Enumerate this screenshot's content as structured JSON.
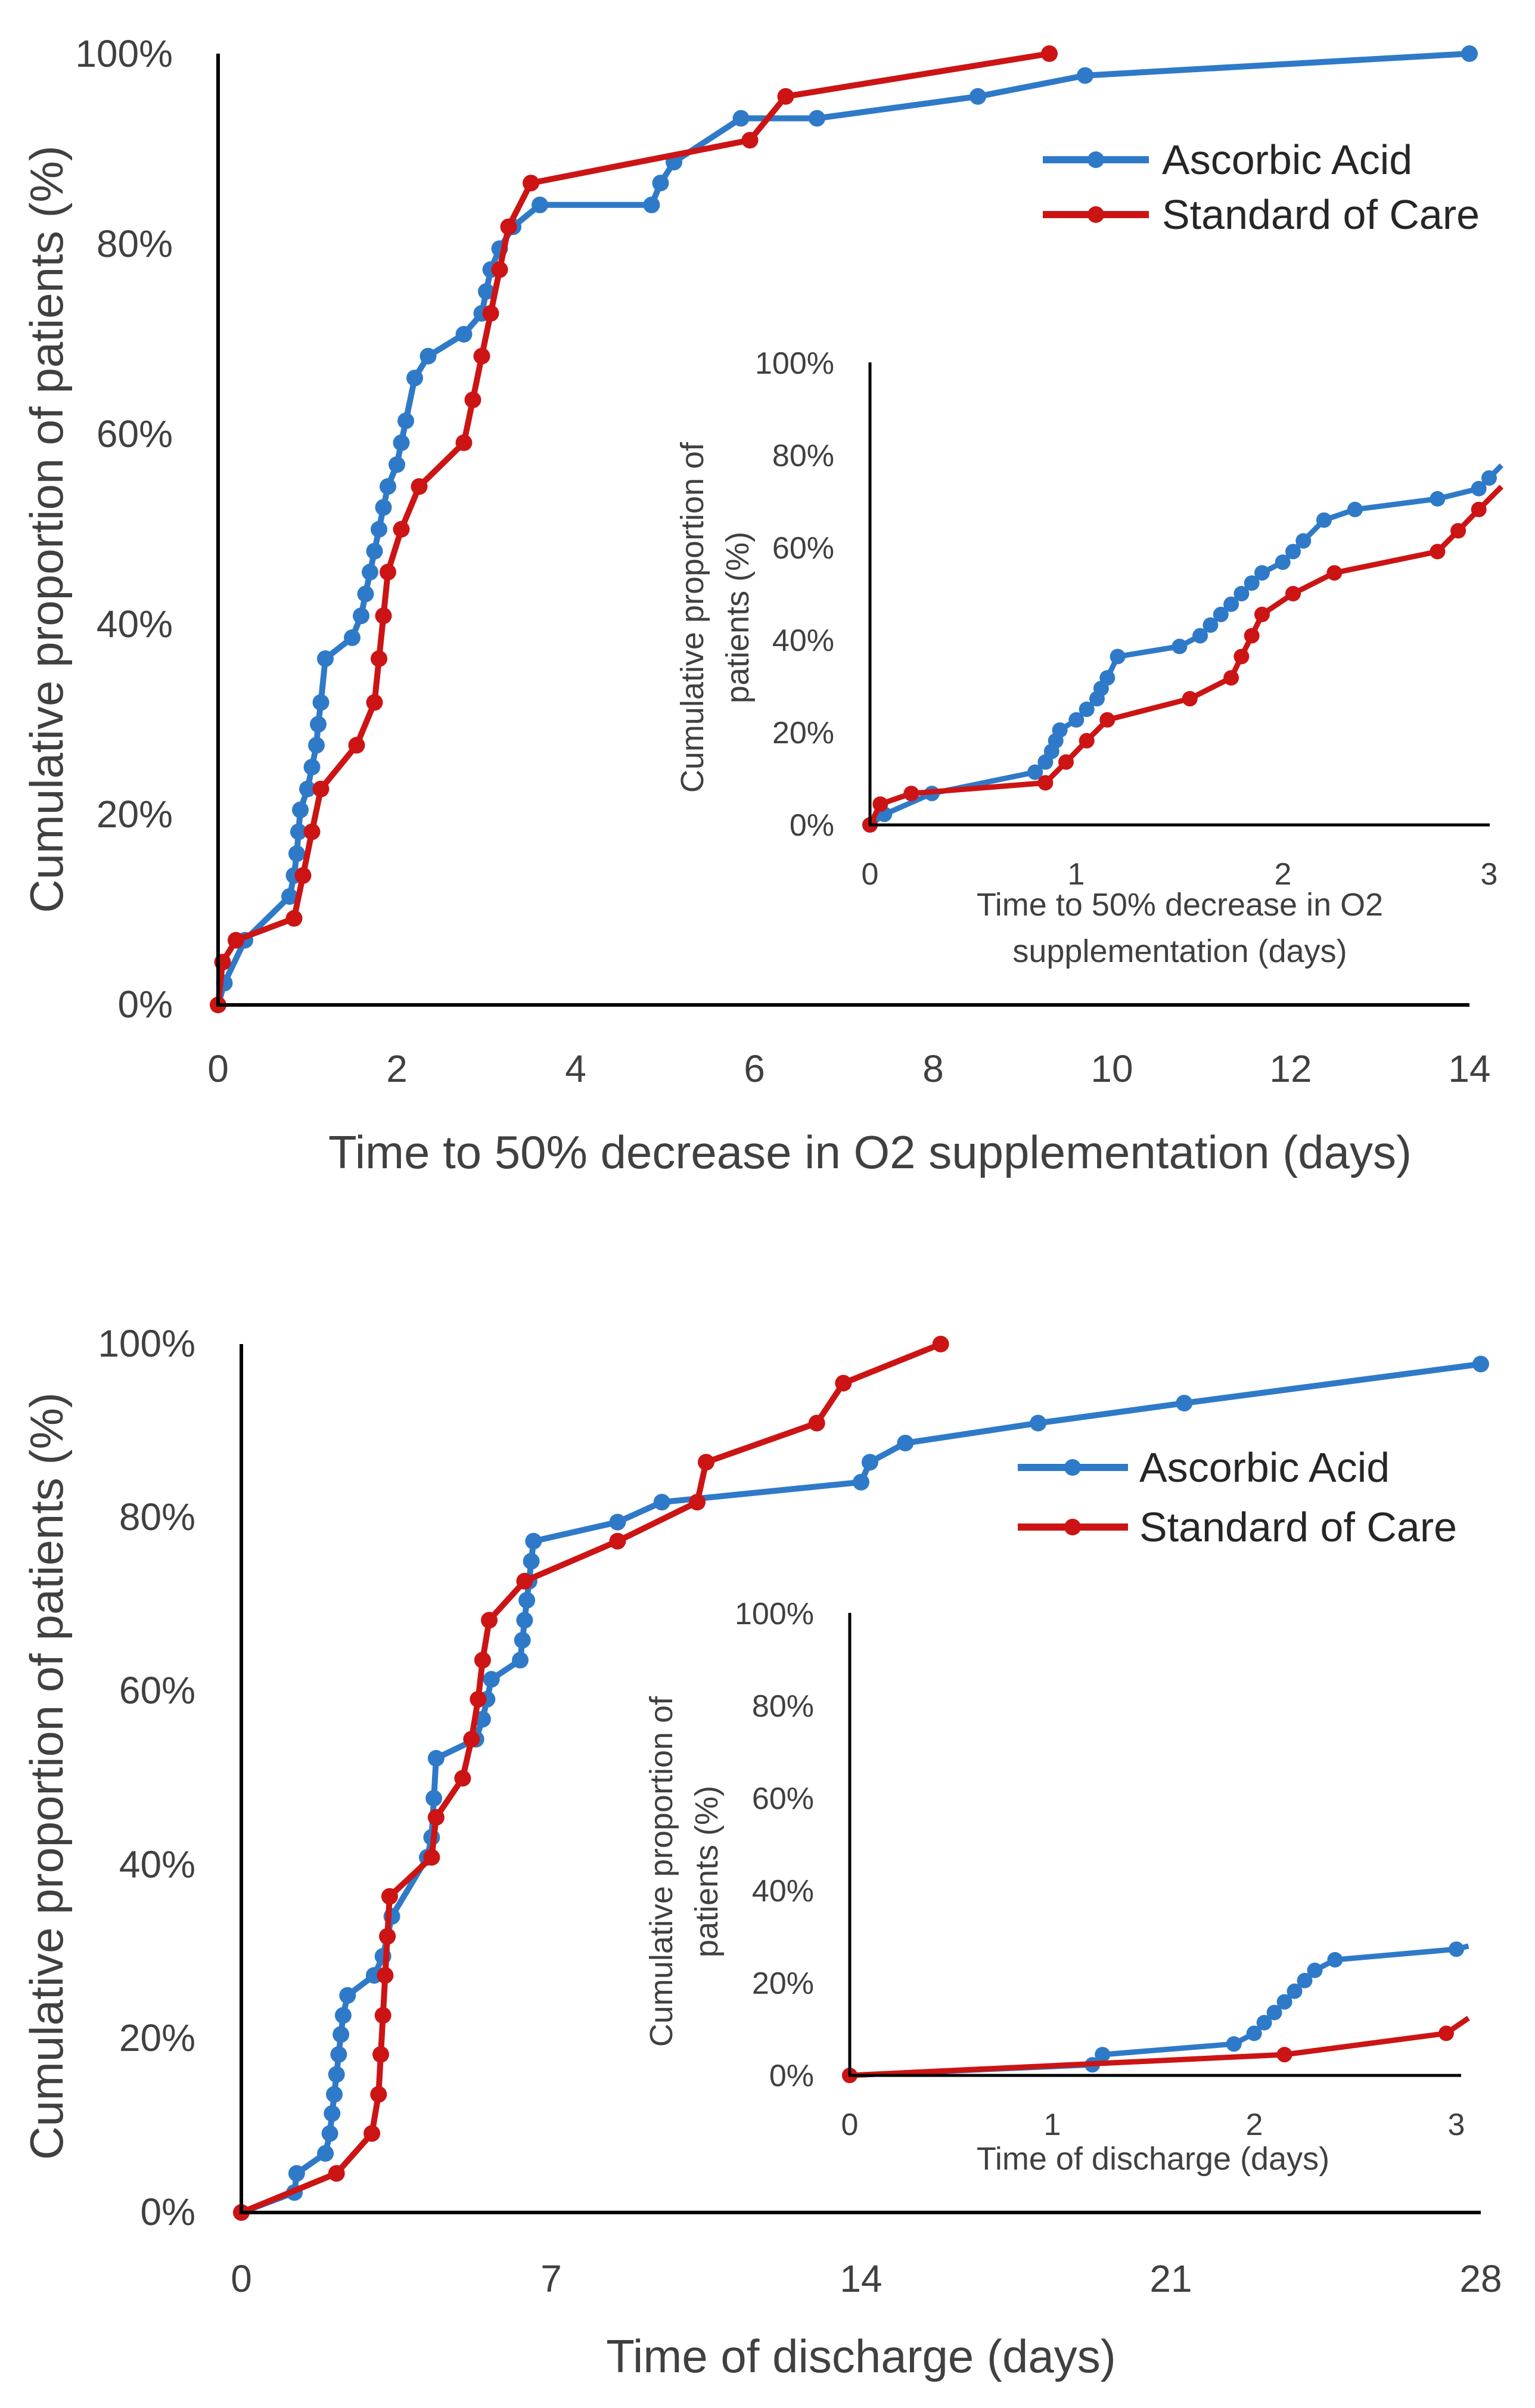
{
  "colors": {
    "ascorbic": "#2f7ac8",
    "standard": "#cc1414",
    "axis": "#000000",
    "text": "#404040"
  },
  "chart_data": [
    {
      "id": "oxygen_main",
      "type": "line",
      "title": "",
      "xlabel": "Time to 50% decrease in O2 supplementation (days)",
      "ylabel": "Cumulative proportion of patients (%)",
      "xlim": [
        0,
        14
      ],
      "ylim": [
        0,
        100
      ],
      "x_ticks": [
        0,
        2,
        4,
        6,
        8,
        10,
        12,
        14
      ],
      "y_ticks": [
        0,
        20,
        40,
        60,
        80,
        100
      ],
      "x_tick_labels": [
        "0",
        "2",
        "4",
        "6",
        "8",
        "10",
        "12",
        "14"
      ],
      "y_tick_labels": [
        "0%",
        "20%",
        "40%",
        "60%",
        "80%",
        "100%"
      ],
      "legend": [
        "Ascorbic Acid",
        "Standard of Care"
      ],
      "legend_position": "top-right",
      "series": [
        {
          "name": "Ascorbic Acid",
          "color": "#2f7ac8",
          "x": [
            0,
            0.07,
            0.3,
            0.8,
            0.85,
            0.88,
            0.9,
            0.92,
            1.0,
            1.05,
            1.1,
            1.12,
            1.15,
            1.2,
            1.5,
            1.6,
            1.65,
            1.7,
            1.75,
            1.8,
            1.85,
            1.9,
            2.0,
            2.05,
            2.1,
            2.2,
            2.35,
            2.75,
            2.95,
            3.0,
            3.05,
            3.15,
            3.3,
            3.6,
            4.85,
            4.95,
            5.1,
            5.85,
            6.7,
            8.5,
            9.7,
            14
          ],
          "y": [
            0,
            2.3,
            6.8,
            11.4,
            13.6,
            15.9,
            18.2,
            20.5,
            22.7,
            25.0,
            27.3,
            29.5,
            31.8,
            36.4,
            38.6,
            40.9,
            43.2,
            45.5,
            47.7,
            50.0,
            52.3,
            54.5,
            56.8,
            59.1,
            61.4,
            65.9,
            68.2,
            70.5,
            72.7,
            75.0,
            77.3,
            79.5,
            81.8,
            84.1,
            84.1,
            86.4,
            88.6,
            93.2,
            93.2,
            95.5,
            97.7,
            100
          ]
        },
        {
          "name": "Standard of Care",
          "color": "#cc1414",
          "x": [
            0,
            0.05,
            0.2,
            0.85,
            0.95,
            1.05,
            1.15,
            1.55,
            1.75,
            1.8,
            1.85,
            1.9,
            2.05,
            2.25,
            2.75,
            2.85,
            2.95,
            3.05,
            3.15,
            3.25,
            3.5,
            5.95,
            6.35,
            9.3
          ],
          "y": [
            0,
            4.5,
            6.8,
            9.1,
            13.6,
            18.2,
            22.7,
            27.3,
            31.8,
            36.4,
            40.9,
            45.5,
            50.0,
            54.5,
            59.1,
            63.6,
            68.2,
            72.7,
            77.3,
            81.8,
            86.4,
            90.9,
            95.5,
            100
          ]
        }
      ]
    },
    {
      "id": "oxygen_inset",
      "type": "line",
      "title": "",
      "xlabel": "Time to 50% decrease in O2 supplementation (days)",
      "xlabel_lines": [
        "Time to 50% decrease in O2",
        "supplementation (days)"
      ],
      "ylabel": "Cumulative proportion of patients (%)",
      "ylabel_lines": [
        "Cumulative proportion of",
        "patients (%)"
      ],
      "xlim": [
        0,
        3
      ],
      "ylim": [
        0,
        100
      ],
      "x_ticks": [
        0,
        1,
        2,
        3
      ],
      "y_ticks": [
        0,
        20,
        40,
        60,
        80,
        100
      ],
      "x_tick_labels": [
        "0",
        "1",
        "2",
        "3"
      ],
      "y_tick_labels": [
        "0%",
        "20%",
        "40%",
        "60%",
        "80%",
        "100%"
      ],
      "series_ref": "same series as main chart, clipped to x 0–3"
    },
    {
      "id": "discharge_main",
      "type": "line",
      "title": "",
      "xlabel": "Time of discharge (days)",
      "ylabel": "Cumulative proportion of patients (%)",
      "xlim": [
        0,
        28
      ],
      "ylim": [
        0,
        100
      ],
      "x_ticks": [
        0,
        7,
        14,
        21,
        28
      ],
      "y_ticks": [
        0,
        20,
        40,
        60,
        80,
        100
      ],
      "x_tick_labels": [
        "0",
        "7",
        "14",
        "21",
        "28"
      ],
      "y_tick_labels": [
        "0%",
        "20%",
        "40%",
        "60%",
        "80%",
        "100%"
      ],
      "legend": [
        "Ascorbic Acid",
        "Standard of Care"
      ],
      "legend_position": "top-right",
      "series": [
        {
          "name": "Ascorbic Acid",
          "color": "#2f7ac8",
          "x": [
            0,
            1.2,
            1.25,
            1.9,
            2.0,
            2.05,
            2.1,
            2.15,
            2.2,
            2.25,
            2.3,
            2.4,
            3.0,
            3.2,
            3.3,
            3.4,
            4.2,
            4.3,
            4.35,
            4.4,
            5.3,
            5.45,
            5.55,
            5.65,
            6.3,
            6.35,
            6.4,
            6.45,
            6.5,
            6.55,
            6.6,
            8.5,
            9.5,
            14.0,
            14.2,
            15.0,
            18.0,
            21.3,
            28
          ],
          "y": [
            0,
            2.3,
            4.5,
            6.8,
            9.1,
            11.4,
            13.6,
            15.9,
            18.2,
            20.5,
            22.7,
            25.0,
            27.3,
            29.5,
            31.8,
            34.1,
            40.9,
            43.2,
            47.7,
            52.3,
            54.5,
            56.8,
            59.1,
            61.4,
            63.6,
            65.9,
            68.2,
            70.5,
            72.7,
            75.0,
            77.3,
            79.5,
            81.8,
            84.1,
            86.4,
            88.6,
            90.9,
            93.2,
            97.7
          ]
        },
        {
          "name": "Standard of Care",
          "color": "#cc1414",
          "x": [
            0,
            2.15,
            2.95,
            3.1,
            3.15,
            3.2,
            3.25,
            3.3,
            3.35,
            4.3,
            4.4,
            5.0,
            5.2,
            5.35,
            5.45,
            5.6,
            6.4,
            8.5,
            10.3,
            10.5,
            13.0,
            13.6,
            15.8
          ],
          "y": [
            0,
            4.5,
            9.1,
            13.6,
            18.2,
            22.7,
            27.3,
            31.8,
            36.4,
            40.9,
            45.5,
            50.0,
            54.5,
            59.1,
            63.6,
            68.2,
            72.7,
            77.3,
            81.8,
            86.4,
            90.9,
            95.5,
            100
          ]
        }
      ]
    },
    {
      "id": "discharge_inset",
      "type": "line",
      "title": "",
      "xlabel": "Time of discharge (days)",
      "ylabel": "Cumulative proportion of patients (%)",
      "ylabel_lines": [
        "Cumulative proportion of",
        "patients (%)"
      ],
      "xlim": [
        0,
        3
      ],
      "ylim": [
        0,
        100
      ],
      "x_ticks": [
        0,
        1,
        2,
        3
      ],
      "y_ticks": [
        0,
        20,
        40,
        60,
        80,
        100
      ],
      "x_tick_labels": [
        "0",
        "1",
        "2",
        "3"
      ],
      "y_tick_labels": [
        "0%",
        "20%",
        "40%",
        "60%",
        "80%",
        "100%"
      ],
      "series_ref": "same series as main chart, clipped to x 0–3"
    }
  ]
}
